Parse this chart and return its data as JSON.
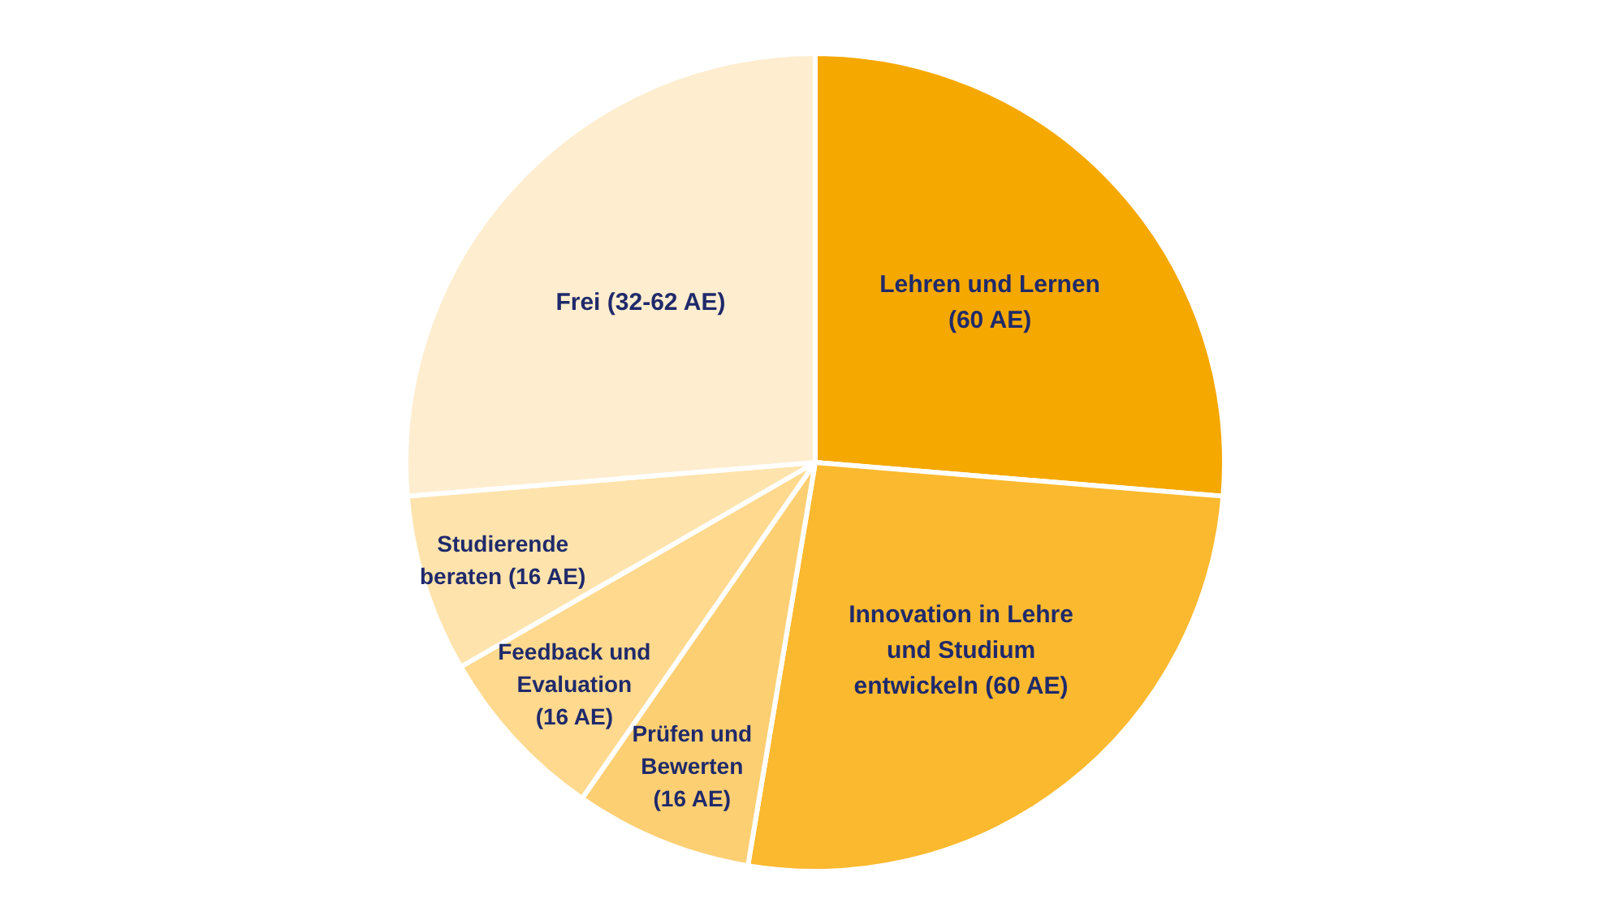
{
  "chart_data": {
    "type": "pie",
    "categories": [
      "Lehren und Lernen (60 AE)",
      "Innovation in Lehre und Studium entwickeln (60 AE)",
      "Prüfen und Bewerten (16 AE)",
      "Feedback und Evaluation (16 AE)",
      "Studierende beraten (16 AE)",
      "Frei (32-62 AE)"
    ],
    "values": [
      60,
      60,
      16,
      16,
      16,
      60
    ],
    "colors": [
      "#f5a800",
      "#fbb92f",
      "#fdcf73",
      "#fed98e",
      "#fee3ac",
      "#feedcf"
    ],
    "legend": false
  }
}
